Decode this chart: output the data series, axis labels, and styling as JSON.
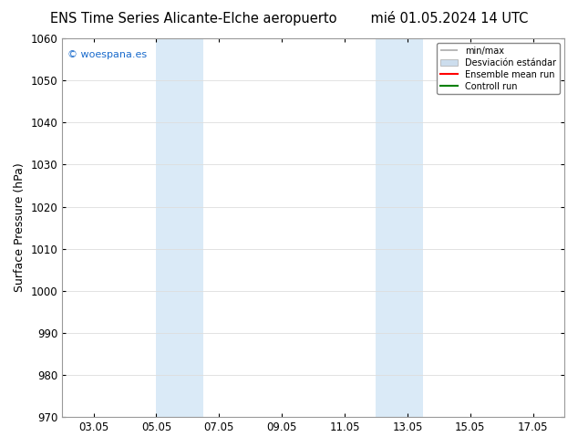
{
  "title_left": "ENS Time Series Alicante-Elche aeropuerto",
  "title_right": "mié 01.05.2024 14 UTC",
  "ylabel": "Surface Pressure (hPa)",
  "ylim": [
    970,
    1060
  ],
  "yticks": [
    970,
    980,
    990,
    1000,
    1010,
    1020,
    1030,
    1040,
    1050,
    1060
  ],
  "xtick_labels": [
    "03.05",
    "05.05",
    "07.05",
    "09.05",
    "11.05",
    "13.05",
    "15.05",
    "17.05"
  ],
  "xtick_positions": [
    2,
    4,
    6,
    8,
    10,
    12,
    14,
    16
  ],
  "xlim": [
    1,
    17
  ],
  "shaded_bands": [
    {
      "xmin": 4.0,
      "xmax": 5.5
    },
    {
      "xmin": 11.0,
      "xmax": 12.5
    }
  ],
  "shaded_color": "#daeaf7",
  "watermark": "© woespana.es",
  "watermark_color": "#1a6bcc",
  "legend_entry_1_label": "min/max",
  "legend_entry_1_color": "#aaaaaa",
  "legend_entry_2_label": "Desviación estándar",
  "legend_entry_2_color": "#ccdded",
  "legend_entry_3_label": "Ensemble mean run",
  "legend_entry_3_color": "red",
  "legend_entry_4_label": "Controll run",
  "legend_entry_4_color": "green",
  "background_color": "#ffffff",
  "grid_color": "#dddddd",
  "title_fontsize": 10.5,
  "tick_fontsize": 8.5,
  "ylabel_fontsize": 9
}
